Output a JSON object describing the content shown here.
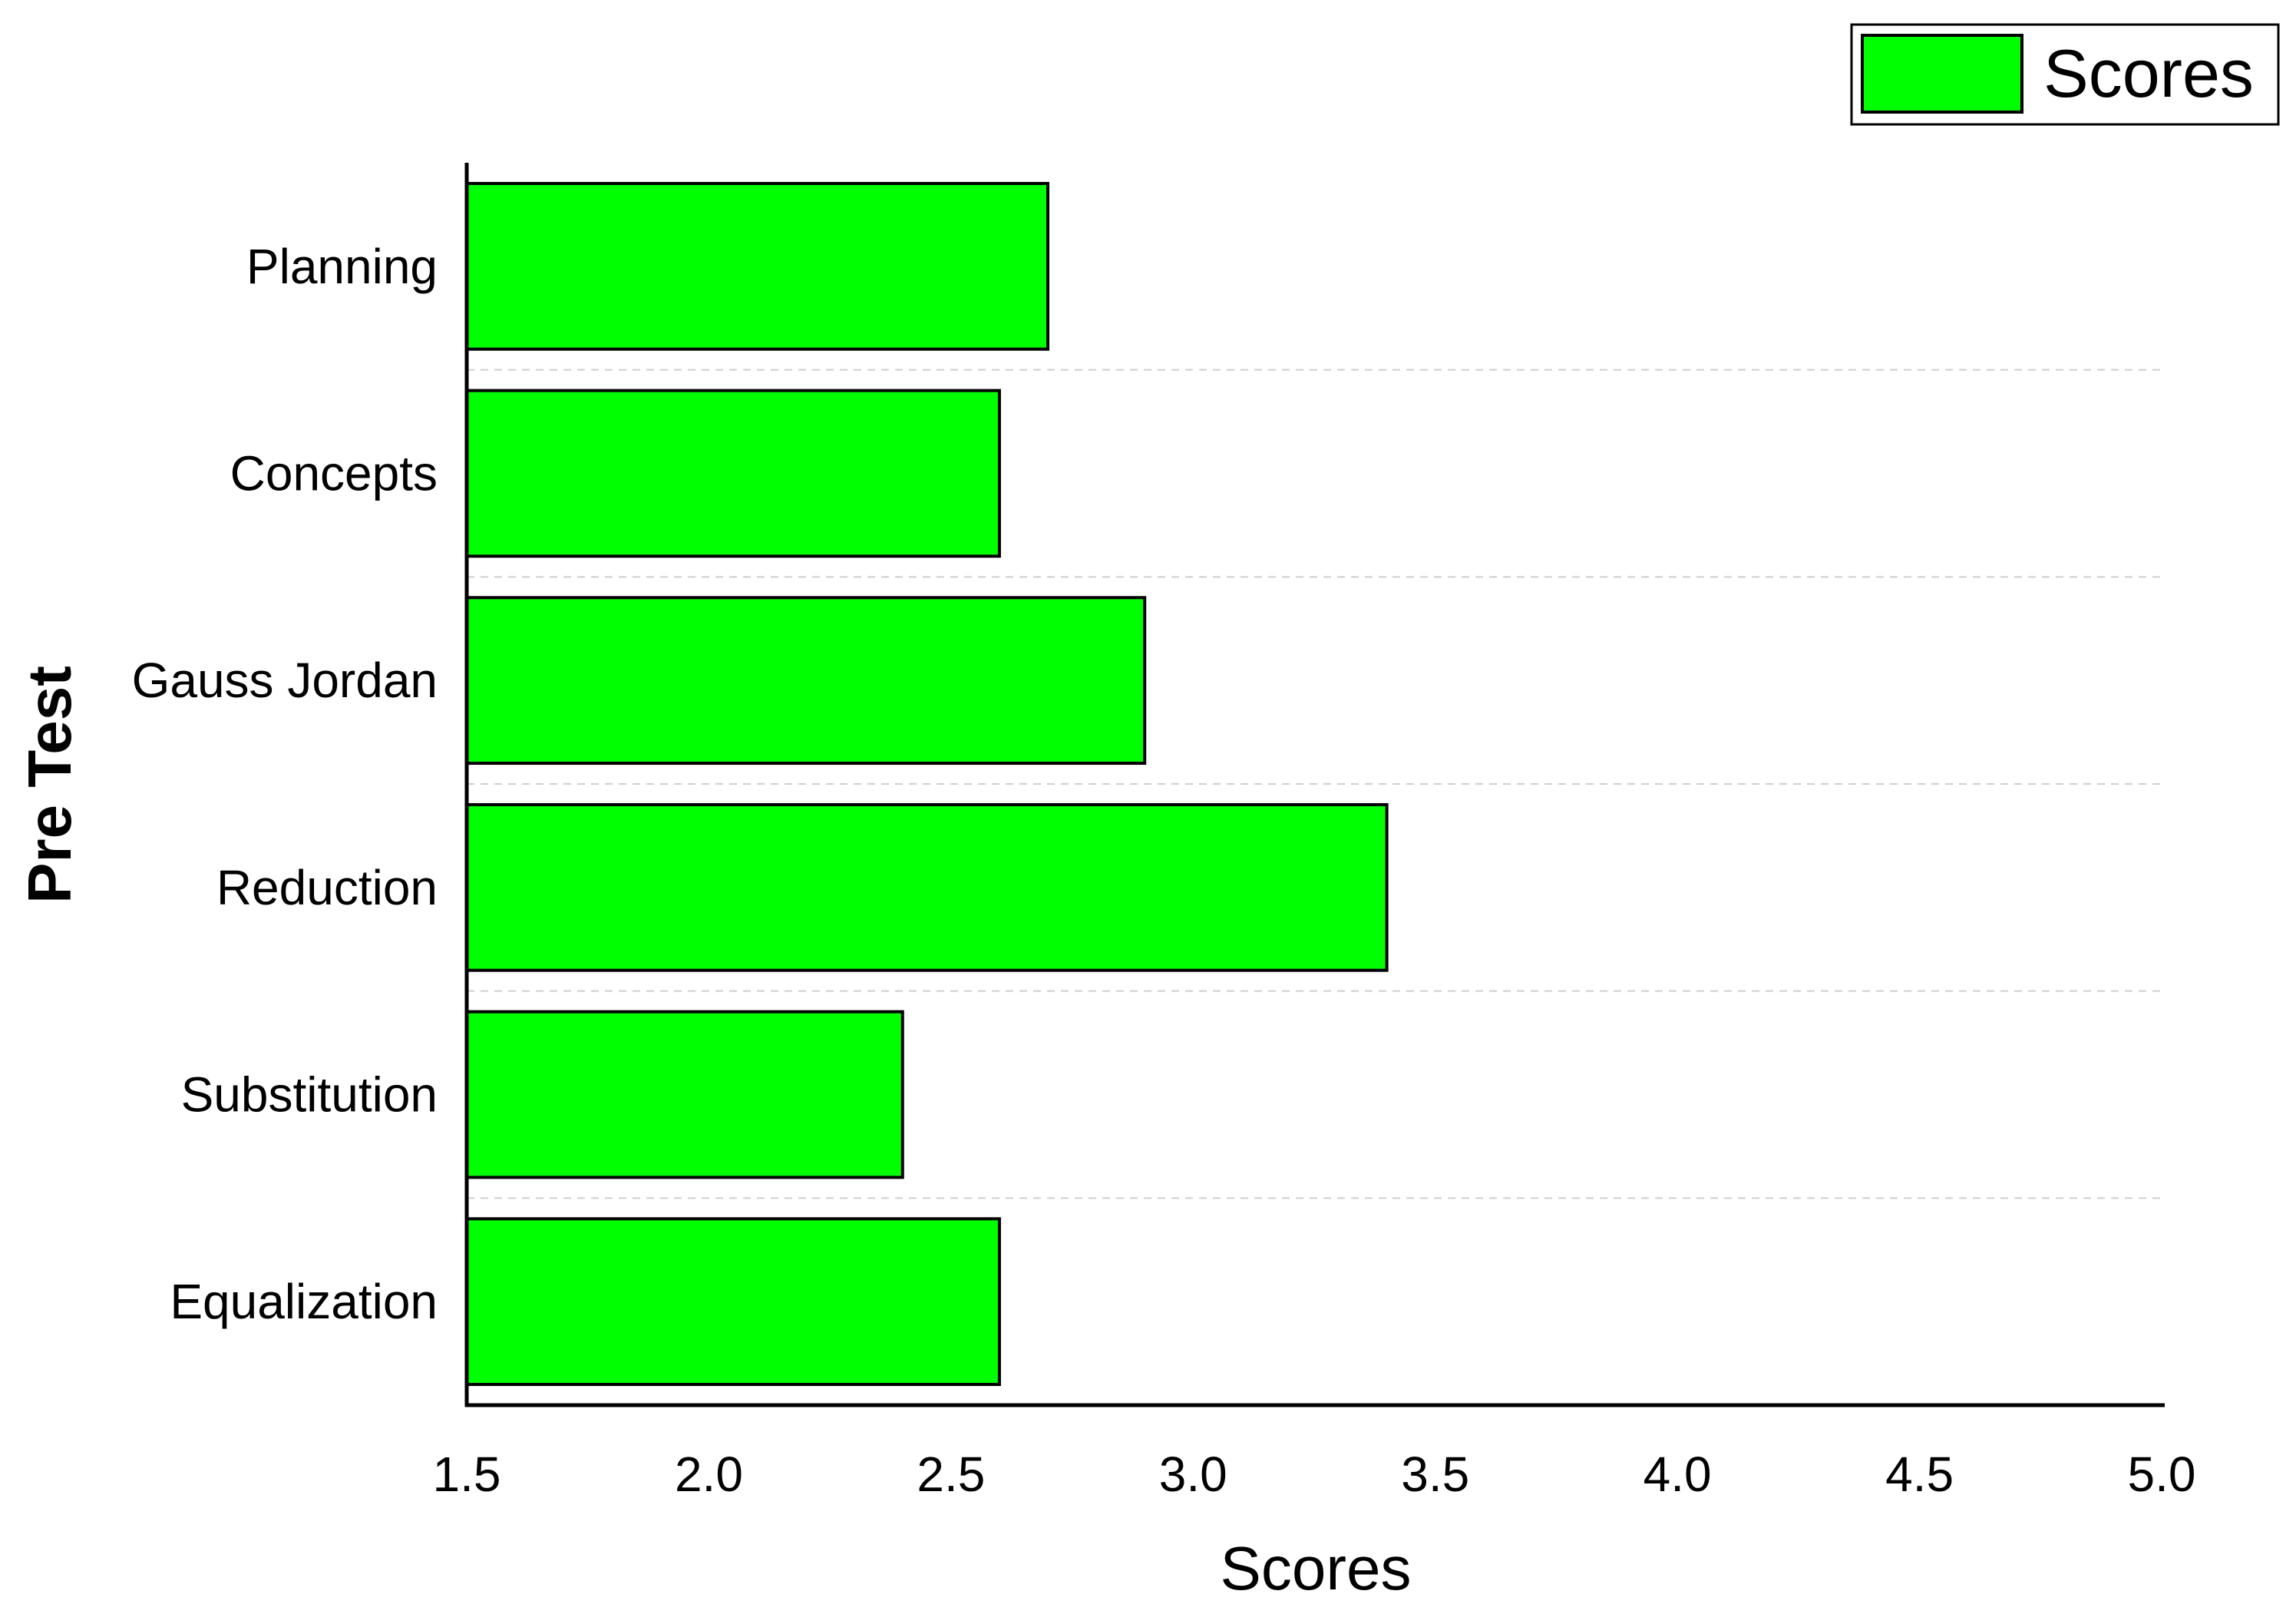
{
  "chart_data": {
    "type": "bar",
    "orientation": "horizontal",
    "categories": [
      "Planning",
      "Concepts",
      "Gauss Jordan",
      "Reduction",
      "Substitution",
      "Equalization"
    ],
    "series": [
      {
        "name": "Scores",
        "values": [
          2.7,
          2.6,
          2.9,
          3.4,
          2.4,
          2.6
        ]
      }
    ],
    "xlabel": "Scores",
    "ylabel": "Pre Test",
    "xlim": [
      1.5,
      5.0
    ],
    "xticks": [
      "1.5",
      "2.0",
      "2.5",
      "3.0",
      "3.5",
      "4.0",
      "4.5",
      "5.0"
    ],
    "grid": "horizontal dashed between categories",
    "legend": "top-right",
    "bar_color": "#00ff00",
    "bar_edge_color": "#000000"
  }
}
